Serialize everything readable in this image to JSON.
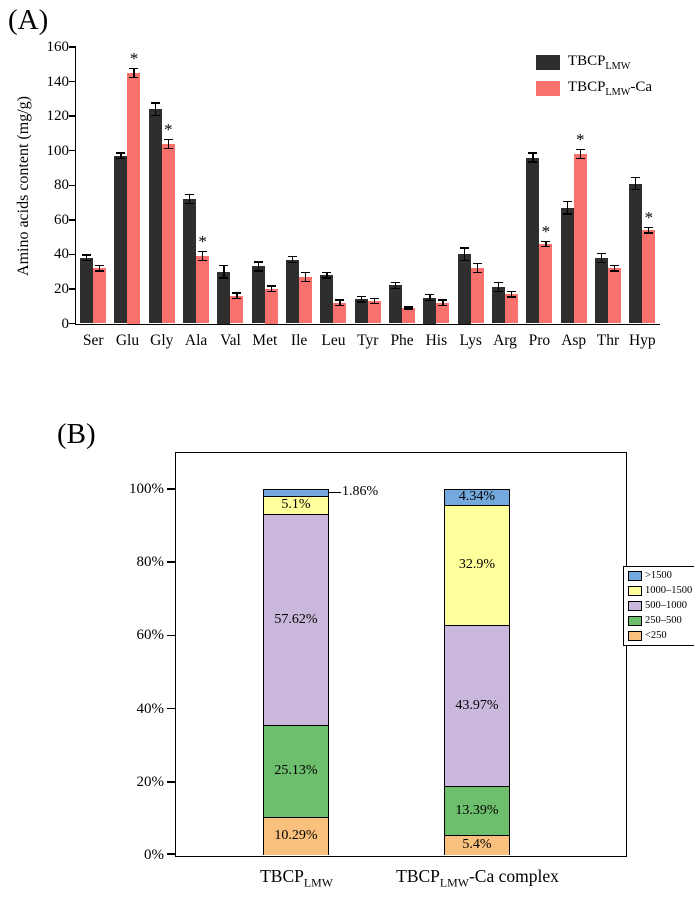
{
  "panelA": {
    "label": "(A)"
  },
  "panelB": {
    "label": "(B)"
  },
  "chart_data": [
    {
      "type": "bar",
      "title": "",
      "ylabel": "Amino acids content (mg/g)",
      "xlabel": "",
      "ylim": [
        0,
        160
      ],
      "yticks": [
        0,
        20,
        40,
        60,
        80,
        100,
        120,
        140,
        160
      ],
      "grid": false,
      "legend_position": "top-right",
      "categories": [
        "Ser",
        "Glu",
        "Gly",
        "Ala",
        "Val",
        "Met",
        "Ile",
        "Leu",
        "Tyr",
        "Phe",
        "His",
        "Lys",
        "Arg",
        "Pro",
        "Asp",
        "Thr",
        "Hyp"
      ],
      "series": [
        {
          "name": "TBCP LMW",
          "name_parts": {
            "base": "TBCP",
            "sub": "LMW",
            "suffix": ""
          },
          "color": "#2e2e2e",
          "values": [
            38,
            97,
            124,
            72,
            30,
            33,
            37,
            28,
            14,
            22,
            15,
            40,
            21,
            96,
            67,
            38,
            81
          ],
          "errors": [
            2,
            2,
            4,
            3,
            4,
            3,
            2,
            2,
            2,
            2,
            2,
            4,
            3,
            3,
            4,
            3,
            4
          ]
        },
        {
          "name": "TBCP LMW-Ca",
          "name_parts": {
            "base": "TBCP",
            "sub": "LMW",
            "suffix": "-Ca"
          },
          "color": "#f8716d",
          "values": [
            32,
            145,
            104,
            39,
            16,
            20,
            27,
            12,
            13,
            9,
            12,
            32,
            17,
            46,
            98,
            32,
            54
          ],
          "errors": [
            2,
            3,
            3,
            3,
            2,
            2,
            3,
            2,
            2,
            1,
            2,
            3,
            2,
            2,
            3,
            2,
            2
          ],
          "significant": [
            "Glu",
            "Gly",
            "Ala",
            "Pro",
            "Asp",
            "Hyp"
          ]
        }
      ]
    },
    {
      "type": "stacked-bar-percent",
      "title": "",
      "ylim": [
        0,
        100
      ],
      "yticks": [
        "0%",
        "20%",
        "40%",
        "60%",
        "80%",
        "100%"
      ],
      "legend_position": "right",
      "categories": [
        "TBCP LMW",
        "TBCP LMW-Ca complex"
      ],
      "categories_parts": [
        {
          "base": "TBCP",
          "sub": "LMW",
          "suffix": ""
        },
        {
          "base": "TBCP",
          "sub": "LMW",
          "suffix": "-Ca complex"
        }
      ],
      "segments": [
        {
          "name": "<250",
          "color": "#fac17e",
          "values": [
            10.29,
            5.4
          ],
          "labels": [
            "10.29%",
            "5.4%"
          ]
        },
        {
          "name": "250–500",
          "color": "#6dbe6d",
          "values": [
            25.13,
            13.39
          ],
          "labels": [
            "25.13%",
            "13.39%"
          ]
        },
        {
          "name": "500–1000",
          "color": "#c9b8dc",
          "values": [
            57.62,
            43.97
          ],
          "labels": [
            "57.62%",
            "43.97%"
          ]
        },
        {
          "name": "1000–1500",
          "color": "#ffff9c",
          "values": [
            5.1,
            32.9
          ],
          "labels": [
            "5.1%",
            "32.9%"
          ]
        },
        {
          "name": ">1500",
          "color": "#74a9dd",
          "values": [
            1.86,
            4.34
          ],
          "labels": [
            "1.86%",
            "4.34%"
          ]
        }
      ],
      "outside_label": {
        "bar": 0,
        "segment": ">1500",
        "text": "1.86%"
      }
    }
  ]
}
